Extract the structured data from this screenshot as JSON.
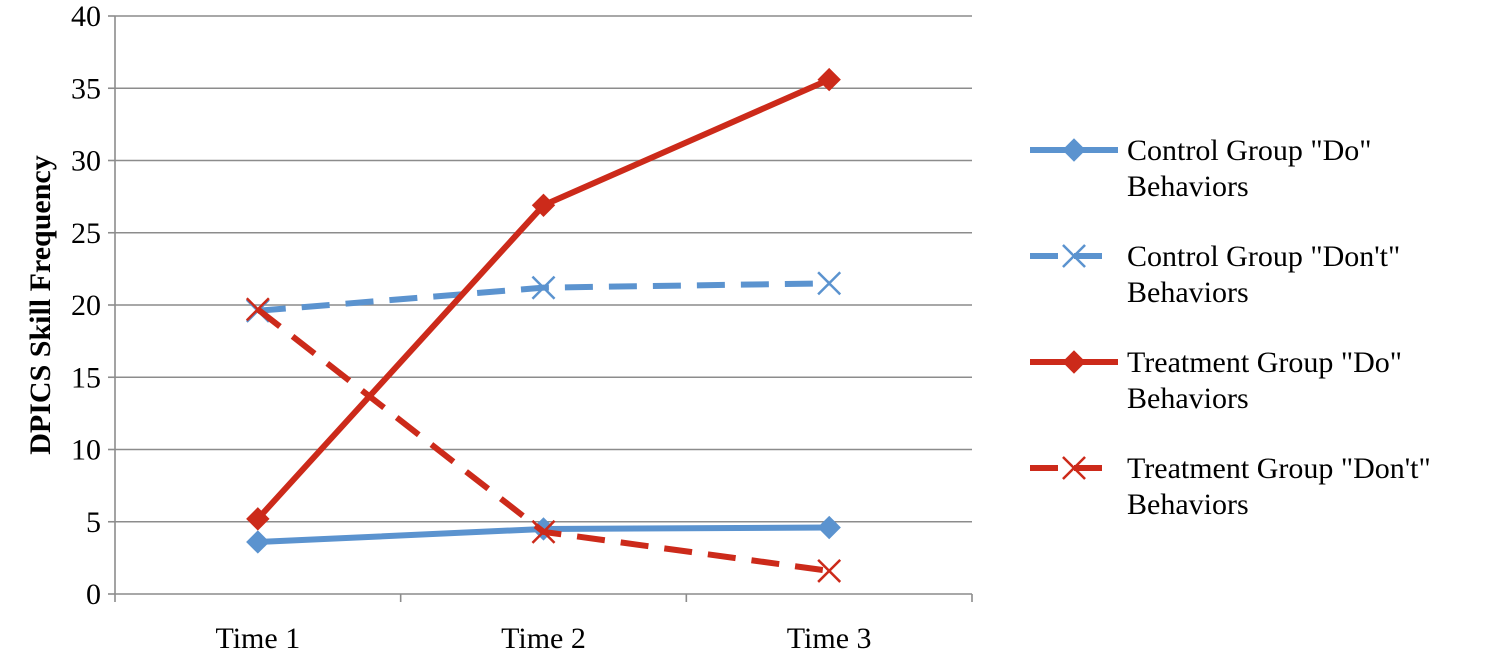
{
  "chart_data": {
    "type": "line",
    "title": "",
    "xlabel": "",
    "ylabel": "DPICS Skill Frequency",
    "categories": [
      "Time 1",
      "Time 2",
      "Time 3"
    ],
    "ylim": [
      0,
      40
    ],
    "yticks": [
      "0",
      "5",
      "10",
      "15",
      "20",
      "25",
      "30",
      "35",
      "40"
    ],
    "grid": "horizontal",
    "legend_position": "right",
    "series": [
      {
        "name": "Control Group \"Do\" Behaviors",
        "values": [
          3.6,
          4.5,
          4.6
        ],
        "color": "#5b93cf",
        "dashed": false,
        "marker": "diamond"
      },
      {
        "name": "Control Group \"Don't\" Behaviors",
        "values": [
          19.6,
          21.2,
          21.5
        ],
        "color": "#5b93cf",
        "dashed": true,
        "marker": "x"
      },
      {
        "name": "Treatment Group \"Do\" Behaviors",
        "values": [
          5.2,
          26.9,
          35.6
        ],
        "color": "#cc2a1a",
        "dashed": false,
        "marker": "diamond"
      },
      {
        "name": "Treatment Group \"Don't\" Behaviors",
        "values": [
          19.7,
          4.3,
          1.6
        ],
        "color": "#cc2a1a",
        "dashed": true,
        "marker": "x"
      }
    ]
  }
}
